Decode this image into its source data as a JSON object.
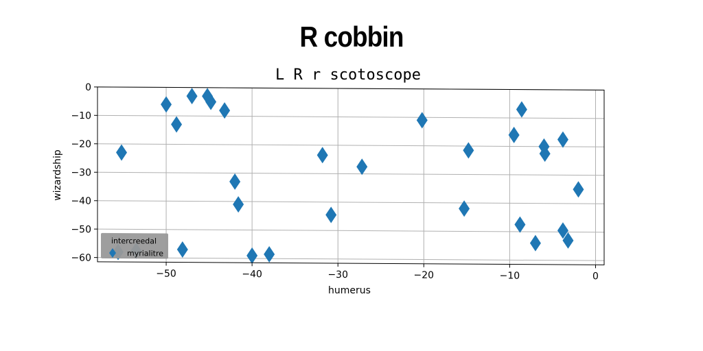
{
  "page_title": "R cobbin",
  "chart_data": {
    "type": "scatter",
    "title": "L R r scotoscope",
    "xlabel": "humerus",
    "ylabel": "wizardship",
    "xlim": [
      -58,
      1
    ],
    "ylim": [
      -61.5,
      0
    ],
    "xticks": [
      -50,
      -40,
      -30,
      -20,
      -10,
      0
    ],
    "yticks": [
      0,
      -10,
      -20,
      -30,
      -40,
      -50,
      -60
    ],
    "grid": true,
    "legend": {
      "title": "intercreedal",
      "placement": "lower-left"
    },
    "marker": "diamond",
    "color": "#1f77b4",
    "series": [
      {
        "name": "myrialitre",
        "points": [
          [
            -55.2,
            -23
          ],
          [
            -50,
            -6
          ],
          [
            -48.8,
            -13
          ],
          [
            -47,
            -3
          ],
          [
            -45.2,
            -3
          ],
          [
            -44.8,
            -5
          ],
          [
            -43.2,
            -8
          ],
          [
            -42,
            -33
          ],
          [
            -41.6,
            -41
          ],
          [
            -48.1,
            -57
          ],
          [
            -55.6,
            -58
          ],
          [
            -53.5,
            -57.5
          ],
          [
            -40,
            -59
          ],
          [
            -38,
            -58.5
          ],
          [
            -31.8,
            -23.5
          ],
          [
            -30.8,
            -44.5
          ],
          [
            -27.2,
            -27.5
          ],
          [
            -20.2,
            -11
          ],
          [
            -15.3,
            -42
          ],
          [
            -14.8,
            -21.5
          ],
          [
            -9.5,
            -16
          ],
          [
            -8.6,
            -7
          ],
          [
            -8.8,
            -47.5
          ],
          [
            -7,
            -54
          ],
          [
            -6,
            -20
          ],
          [
            -5.9,
            -22.5
          ],
          [
            -3.8,
            -17.5
          ],
          [
            -3.8,
            -49.5
          ],
          [
            -3.2,
            -53
          ],
          [
            -2,
            -35
          ]
        ]
      }
    ]
  }
}
